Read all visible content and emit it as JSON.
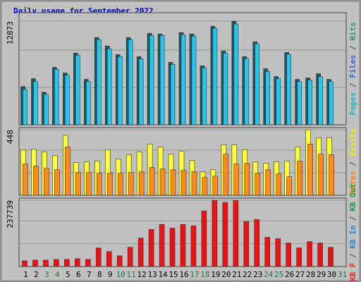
{
  "chart_data": [
    {
      "type": "bar",
      "title": "Daily usage for September 2022",
      "ylim": [
        0,
        13930
      ],
      "yticks": [
        12873
      ],
      "legend": [
        {
          "name": "Pages",
          "color": "#22bbbb"
        },
        {
          "name": "Files",
          "color": "#3366cc"
        },
        {
          "name": "Hits",
          "color": "#339977"
        }
      ],
      "legend_separator": " / ",
      "series": [
        {
          "color": "#1e5560",
          "values": [
            4763,
            5733,
            4057,
            7144,
            6439,
            8908,
            5645,
            10849,
            9790,
            8732,
            10849,
            8467,
            11378,
            11290,
            7762,
            11466,
            11290,
            7321,
            12260,
            9173,
            12873,
            8467,
            10319,
            6968,
            5998,
            8996,
            5645,
            5821,
            6350,
            5645,
            null
          ]
        },
        {
          "color": "#22c8f0",
          "values": [
            4400,
            5380,
            3790,
            6880,
            6170,
            8640,
            5380,
            10580,
            9440,
            8470,
            10580,
            8200,
            11110,
            11110,
            7500,
            11200,
            11020,
            7060,
            11990,
            8910,
            12520,
            8200,
            10050,
            6620,
            5730,
            8730,
            5380,
            5560,
            5990,
            5380,
            null
          ]
        }
      ]
    },
    {
      "type": "bar",
      "ylim": [
        0,
        463
      ],
      "yticks": [
        448
      ],
      "legend": [
        {
          "name": "Sites",
          "color": "#ff8800"
        },
        {
          "name": "Visits",
          "color": "#eeee00"
        }
      ],
      "legend_separator": " / ",
      "series": [
        {
          "color": "#ffff33",
          "values": [
            312,
            317,
            297,
            273,
            409,
            224,
            229,
            234,
            312,
            248,
            278,
            297,
            351,
            331,
            282,
            302,
            239,
            161,
            175,
            346,
            346,
            312,
            229,
            219,
            229,
            234,
            331,
            448,
            394,
            394,
            null
          ]
        },
        {
          "color": "#ff8c1a",
          "values": [
            214,
            200,
            185,
            175,
            331,
            156,
            156,
            151,
            151,
            151,
            156,
            161,
            190,
            180,
            175,
            170,
            161,
            122,
            131,
            282,
            214,
            219,
            151,
            175,
            146,
            127,
            234,
            351,
            282,
            278,
            null
          ]
        }
      ]
    },
    {
      "type": "bar",
      "ylim": [
        0,
        245400
      ],
      "yticks": [
        237739
      ],
      "legend": [
        {
          "name": "KB F",
          "color": "#ee2222"
        },
        {
          "name": "KB In",
          "color": "#3388cc"
        },
        {
          "name": "KB Out",
          "color": "#229944"
        }
      ],
      "legend_separator": " / ",
      "categories": [
        1,
        2,
        3,
        4,
        5,
        6,
        7,
        8,
        9,
        10,
        11,
        12,
        13,
        14,
        15,
        16,
        17,
        18,
        19,
        20,
        21,
        22,
        23,
        24,
        25,
        26,
        27,
        28,
        29,
        30,
        31
      ],
      "category_colors": [
        "#000",
        "#000",
        "#227744",
        "#227744",
        "#000",
        "#000",
        "#000",
        "#000",
        "#000",
        "#227744",
        "#227744",
        "#000",
        "#000",
        "#000",
        "#000",
        "#000",
        "#227744",
        "#227744",
        "#000",
        "#000",
        "#000",
        "#000",
        "#000",
        "#227744",
        "#227744",
        "#000",
        "#000",
        "#000",
        "#000",
        "#000",
        "#227744"
      ],
      "series": [
        {
          "color": "#ee1111",
          "values": [
            20448,
            23004,
            23004,
            25560,
            25560,
            28116,
            25560,
            66456,
            53676,
            38340,
            69012,
            102240,
            132912,
            150804,
            138024,
            150804,
            145692,
            199368,
            237739,
            230040,
            237739,
            161028,
            168696,
            104796,
            99684,
            84348,
            66456,
            89460,
            84348,
            69012,
            null
          ]
        }
      ]
    }
  ]
}
